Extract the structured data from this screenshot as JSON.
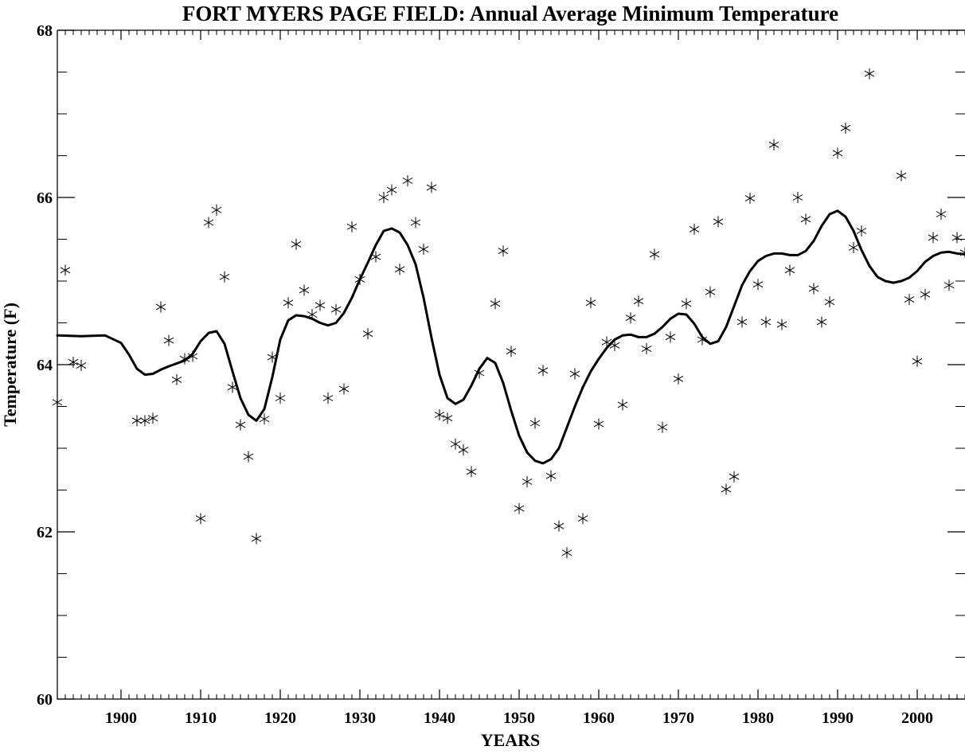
{
  "chart_data": {
    "type": "scatter",
    "title": "FORT MYERS PAGE FIELD: Annual Average Minimum Temperature",
    "xlabel": "YEARS",
    "ylabel": "Temperature (F)",
    "xlim": [
      1892,
      2006
    ],
    "ylim": [
      60,
      68
    ],
    "xticks": [
      1900,
      1910,
      1920,
      1930,
      1940,
      1950,
      1960,
      1970,
      1980,
      1990,
      2000
    ],
    "yticks": [
      60,
      62,
      64,
      66,
      68
    ],
    "grid": false,
    "series": [
      {
        "marker": "asterisk",
        "points": [
          [
            1892,
            63.55
          ],
          [
            1893,
            65.13
          ],
          [
            1894,
            64.03
          ],
          [
            1895,
            63.99
          ],
          [
            1902,
            63.33
          ],
          [
            1903,
            63.33
          ],
          [
            1904,
            63.36
          ],
          [
            1905,
            64.69
          ],
          [
            1906,
            64.29
          ],
          [
            1907,
            63.82
          ],
          [
            1908,
            64.07
          ],
          [
            1909,
            64.1
          ],
          [
            1910,
            62.16
          ],
          [
            1911,
            65.7
          ],
          [
            1912,
            65.85
          ],
          [
            1913,
            65.05
          ],
          [
            1914,
            63.73
          ],
          [
            1915,
            63.28
          ],
          [
            1916,
            62.9
          ],
          [
            1917,
            61.92
          ],
          [
            1918,
            63.35
          ],
          [
            1919,
            64.09
          ],
          [
            1920,
            63.6
          ],
          [
            1921,
            64.74
          ],
          [
            1922,
            65.44
          ],
          [
            1923,
            64.89
          ],
          [
            1924,
            64.6
          ],
          [
            1925,
            64.71
          ],
          [
            1926,
            63.6
          ],
          [
            1927,
            64.66
          ],
          [
            1928,
            63.71
          ],
          [
            1929,
            65.65
          ],
          [
            1930,
            65.02
          ],
          [
            1931,
            64.37
          ],
          [
            1932,
            65.29
          ],
          [
            1933,
            66.0
          ],
          [
            1934,
            66.09
          ],
          [
            1935,
            65.14
          ],
          [
            1936,
            66.2
          ],
          [
            1937,
            65.7
          ],
          [
            1938,
            65.38
          ],
          [
            1939,
            66.12
          ],
          [
            1940,
            63.4
          ],
          [
            1941,
            63.36
          ],
          [
            1942,
            63.05
          ],
          [
            1943,
            62.98
          ],
          [
            1944,
            62.72
          ],
          [
            1945,
            63.9
          ],
          [
            1947,
            64.73
          ],
          [
            1948,
            65.36
          ],
          [
            1949,
            64.16
          ],
          [
            1950,
            62.28
          ],
          [
            1951,
            62.6
          ],
          [
            1952,
            63.3
          ],
          [
            1953,
            63.93
          ],
          [
            1954,
            62.67
          ],
          [
            1955,
            62.07
          ],
          [
            1956,
            61.75
          ],
          [
            1957,
            63.89
          ],
          [
            1958,
            62.16
          ],
          [
            1959,
            64.74
          ],
          [
            1960,
            63.29
          ],
          [
            1961,
            64.27
          ],
          [
            1962,
            64.23
          ],
          [
            1963,
            63.52
          ],
          [
            1964,
            64.56
          ],
          [
            1965,
            64.76
          ],
          [
            1966,
            64.19
          ],
          [
            1967,
            65.32
          ],
          [
            1968,
            63.25
          ],
          [
            1969,
            64.33
          ],
          [
            1970,
            63.83
          ],
          [
            1971,
            64.73
          ],
          [
            1972,
            65.62
          ],
          [
            1973,
            64.3
          ],
          [
            1974,
            64.87
          ],
          [
            1975,
            65.71
          ],
          [
            1976,
            62.51
          ],
          [
            1977,
            62.66
          ],
          [
            1978,
            64.51
          ],
          [
            1979,
            65.99
          ],
          [
            1980,
            64.96
          ],
          [
            1981,
            64.51
          ],
          [
            1982,
            66.63
          ],
          [
            1983,
            64.48
          ],
          [
            1984,
            65.13
          ],
          [
            1985,
            66.0
          ],
          [
            1986,
            65.74
          ],
          [
            1987,
            64.91
          ],
          [
            1988,
            64.51
          ],
          [
            1989,
            64.75
          ],
          [
            1990,
            66.53
          ],
          [
            1991,
            66.83
          ],
          [
            1992,
            65.4
          ],
          [
            1993,
            65.6
          ],
          [
            1994,
            67.48
          ],
          [
            1998,
            66.26
          ],
          [
            1999,
            64.78
          ],
          [
            2000,
            64.04
          ],
          [
            2001,
            64.84
          ],
          [
            2002,
            65.52
          ],
          [
            2003,
            65.8
          ],
          [
            2004,
            64.95
          ],
          [
            2005,
            65.52
          ],
          [
            2006,
            65.34
          ]
        ]
      },
      {
        "marker": "line",
        "points": [
          [
            1892,
            64.35
          ],
          [
            1895,
            64.34
          ],
          [
            1898,
            64.35
          ],
          [
            1900,
            64.26
          ],
          [
            1901,
            64.12
          ],
          [
            1902,
            63.95
          ],
          [
            1903,
            63.88
          ],
          [
            1904,
            63.89
          ],
          [
            1905,
            63.94
          ],
          [
            1906,
            63.98
          ],
          [
            1908,
            64.05
          ],
          [
            1909,
            64.13
          ],
          [
            1910,
            64.28
          ],
          [
            1911,
            64.38
          ],
          [
            1912,
            64.4
          ],
          [
            1913,
            64.25
          ],
          [
            1914,
            63.92
          ],
          [
            1915,
            63.6
          ],
          [
            1916,
            63.4
          ],
          [
            1917,
            63.33
          ],
          [
            1918,
            63.47
          ],
          [
            1919,
            63.85
          ],
          [
            1920,
            64.3
          ],
          [
            1921,
            64.53
          ],
          [
            1922,
            64.59
          ],
          [
            1923,
            64.58
          ],
          [
            1924,
            64.55
          ],
          [
            1925,
            64.5
          ],
          [
            1926,
            64.47
          ],
          [
            1927,
            64.5
          ],
          [
            1928,
            64.62
          ],
          [
            1929,
            64.8
          ],
          [
            1930,
            65.02
          ],
          [
            1931,
            65.22
          ],
          [
            1932,
            65.43
          ],
          [
            1933,
            65.6
          ],
          [
            1934,
            65.63
          ],
          [
            1935,
            65.58
          ],
          [
            1936,
            65.43
          ],
          [
            1937,
            65.2
          ],
          [
            1938,
            64.8
          ],
          [
            1939,
            64.32
          ],
          [
            1940,
            63.88
          ],
          [
            1941,
            63.6
          ],
          [
            1942,
            63.53
          ],
          [
            1943,
            63.58
          ],
          [
            1944,
            63.75
          ],
          [
            1945,
            63.95
          ],
          [
            1946,
            64.08
          ],
          [
            1947,
            64.02
          ],
          [
            1948,
            63.78
          ],
          [
            1949,
            63.45
          ],
          [
            1950,
            63.15
          ],
          [
            1951,
            62.95
          ],
          [
            1952,
            62.85
          ],
          [
            1953,
            62.82
          ],
          [
            1954,
            62.87
          ],
          [
            1955,
            63.0
          ],
          [
            1956,
            63.25
          ],
          [
            1957,
            63.5
          ],
          [
            1958,
            63.73
          ],
          [
            1959,
            63.92
          ],
          [
            1960,
            64.07
          ],
          [
            1961,
            64.2
          ],
          [
            1962,
            64.3
          ],
          [
            1963,
            64.35
          ],
          [
            1964,
            64.36
          ],
          [
            1965,
            64.33
          ],
          [
            1966,
            64.33
          ],
          [
            1967,
            64.37
          ],
          [
            1968,
            64.45
          ],
          [
            1969,
            64.55
          ],
          [
            1970,
            64.61
          ],
          [
            1971,
            64.6
          ],
          [
            1972,
            64.49
          ],
          [
            1973,
            64.33
          ],
          [
            1974,
            64.25
          ],
          [
            1975,
            64.28
          ],
          [
            1976,
            64.45
          ],
          [
            1977,
            64.7
          ],
          [
            1978,
            64.95
          ],
          [
            1979,
            65.12
          ],
          [
            1980,
            65.24
          ],
          [
            1981,
            65.3
          ],
          [
            1982,
            65.33
          ],
          [
            1983,
            65.33
          ],
          [
            1984,
            65.31
          ],
          [
            1985,
            65.31
          ],
          [
            1986,
            65.36
          ],
          [
            1987,
            65.48
          ],
          [
            1988,
            65.66
          ],
          [
            1989,
            65.8
          ],
          [
            1990,
            65.84
          ],
          [
            1991,
            65.77
          ],
          [
            1992,
            65.6
          ],
          [
            1993,
            65.37
          ],
          [
            1994,
            65.18
          ],
          [
            1995,
            65.05
          ],
          [
            1996,
            65.0
          ],
          [
            1997,
            64.98
          ],
          [
            1998,
            65.0
          ],
          [
            1999,
            65.04
          ],
          [
            2000,
            65.12
          ],
          [
            2001,
            65.23
          ],
          [
            2002,
            65.3
          ],
          [
            2003,
            65.34
          ],
          [
            2004,
            65.35
          ],
          [
            2005,
            65.33
          ],
          [
            2006,
            65.32
          ]
        ]
      }
    ]
  }
}
